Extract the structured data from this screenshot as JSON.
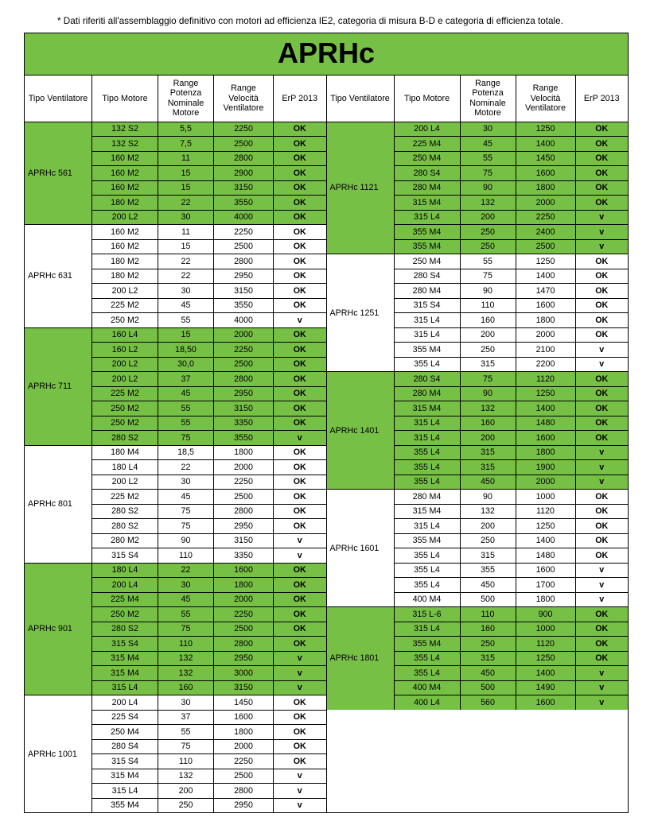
{
  "note": "* Dati riferiti all'assemblaggio definitivo con motori ad efficienza IE2, categoria di misura B-D e categoria di efficienza totale.",
  "title": "APRHc",
  "headers": {
    "tipo_vent": "Tipo Ventilatore",
    "tipo_motore": "Tipo Motore",
    "range_pot": "Range Potenza Nominale Motore",
    "range_vel": "Range Velocità Ventilatore",
    "erp": "ErP 2013"
  },
  "colors": {
    "green": "#77c046",
    "border": "#000000"
  },
  "left_groups": [
    {
      "label": "APRHc 561",
      "green_label": true,
      "rows": [
        {
          "m": "132 S2",
          "p": "5,5",
          "v": "2250",
          "e": "OK",
          "g": true
        },
        {
          "m": "132 S2",
          "p": "7,5",
          "v": "2500",
          "e": "OK",
          "g": true
        },
        {
          "m": "160 M2",
          "p": "11",
          "v": "2800",
          "e": "OK",
          "g": true
        },
        {
          "m": "160 M2",
          "p": "15",
          "v": "2900",
          "e": "OK",
          "g": true
        },
        {
          "m": "160 M2",
          "p": "15",
          "v": "3150",
          "e": "OK",
          "g": true
        },
        {
          "m": "180 M2",
          "p": "22",
          "v": "3550",
          "e": "OK",
          "g": true
        },
        {
          "m": "200 L2",
          "p": "30",
          "v": "4000",
          "e": "OK",
          "g": true
        }
      ]
    },
    {
      "label": "APRHc 631",
      "green_label": false,
      "rows": [
        {
          "m": "160 M2",
          "p": "11",
          "v": "2250",
          "e": "OK",
          "g": false
        },
        {
          "m": "160 M2",
          "p": "15",
          "v": "2500",
          "e": "OK",
          "g": false
        },
        {
          "m": "180 M2",
          "p": "22",
          "v": "2800",
          "e": "OK",
          "g": false
        },
        {
          "m": "180 M2",
          "p": "22",
          "v": "2950",
          "e": "OK",
          "g": false
        },
        {
          "m": "200 L2",
          "p": "30",
          "v": "3150",
          "e": "OK",
          "g": false
        },
        {
          "m": "225 M2",
          "p": "45",
          "v": "3550",
          "e": "OK",
          "g": false
        },
        {
          "m": "250 M2",
          "p": "55",
          "v": "4000",
          "e": "v",
          "g": false
        }
      ]
    },
    {
      "label": "APRHc 711",
      "green_label": true,
      "rows": [
        {
          "m": "160 L4",
          "p": "15",
          "v": "2000",
          "e": "OK",
          "g": true
        },
        {
          "m": "160 L2",
          "p": "18,50",
          "v": "2250",
          "e": "OK",
          "g": true
        },
        {
          "m": "200 L2",
          "p": "30,0",
          "v": "2500",
          "e": "OK",
          "g": true
        },
        {
          "m": "200 L2",
          "p": "37",
          "v": "2800",
          "e": "OK",
          "g": true
        },
        {
          "m": "225 M2",
          "p": "45",
          "v": "2950",
          "e": "OK",
          "g": true
        },
        {
          "m": "250 M2",
          "p": "55",
          "v": "3150",
          "e": "OK",
          "g": true
        },
        {
          "m": "250 M2",
          "p": "55",
          "v": "3350",
          "e": "OK",
          "g": true
        },
        {
          "m": "280 S2",
          "p": "75",
          "v": "3550",
          "e": "v",
          "g": true
        }
      ]
    },
    {
      "label": "APRHc 801",
      "green_label": false,
      "rows": [
        {
          "m": "180 M4",
          "p": "18,5",
          "v": "1800",
          "e": "OK",
          "g": false
        },
        {
          "m": "180 L4",
          "p": "22",
          "v": "2000",
          "e": "OK",
          "g": false
        },
        {
          "m": "200 L2",
          "p": "30",
          "v": "2250",
          "e": "OK",
          "g": false
        },
        {
          "m": "225 M2",
          "p": "45",
          "v": "2500",
          "e": "OK",
          "g": false
        },
        {
          "m": "280 S2",
          "p": "75",
          "v": "2800",
          "e": "OK",
          "g": false
        },
        {
          "m": "280 S2",
          "p": "75",
          "v": "2950",
          "e": "OK",
          "g": false
        },
        {
          "m": "280 M2",
          "p": "90",
          "v": "3150",
          "e": "v",
          "g": false
        },
        {
          "m": "315 S4",
          "p": "110",
          "v": "3350",
          "e": "v",
          "g": false
        }
      ]
    },
    {
      "label": "APRHc 901",
      "green_label": true,
      "rows": [
        {
          "m": "180 L4",
          "p": "22",
          "v": "1600",
          "e": "OK",
          "g": true
        },
        {
          "m": "200 L4",
          "p": "30",
          "v": "1800",
          "e": "OK",
          "g": true
        },
        {
          "m": "225 M4",
          "p": "45",
          "v": "2000",
          "e": "OK",
          "g": true
        },
        {
          "m": "250 M2",
          "p": "55",
          "v": "2250",
          "e": "OK",
          "g": true
        },
        {
          "m": "280 S2",
          "p": "75",
          "v": "2500",
          "e": "OK",
          "g": true
        },
        {
          "m": "315 S4",
          "p": "110",
          "v": "2800",
          "e": "OK",
          "g": true
        },
        {
          "m": "315 M4",
          "p": "132",
          "v": "2950",
          "e": "v",
          "g": true
        },
        {
          "m": "315 M4",
          "p": "132",
          "v": "3000",
          "e": "v",
          "g": true
        },
        {
          "m": "315 L4",
          "p": "160",
          "v": "3150",
          "e": "v",
          "g": true
        }
      ]
    },
    {
      "label": "APRHc 1001",
      "green_label": false,
      "rows": [
        {
          "m": "200 L4",
          "p": "30",
          "v": "1450",
          "e": "OK",
          "g": false
        },
        {
          "m": "225 S4",
          "p": "37",
          "v": "1600",
          "e": "OK",
          "g": false
        },
        {
          "m": "250 M4",
          "p": "55",
          "v": "1800",
          "e": "OK",
          "g": false
        },
        {
          "m": "280 S4",
          "p": "75",
          "v": "2000",
          "e": "OK",
          "g": false
        },
        {
          "m": "315 S4",
          "p": "110",
          "v": "2250",
          "e": "OK",
          "g": false
        },
        {
          "m": "315 M4",
          "p": "132",
          "v": "2500",
          "e": "v",
          "g": false
        },
        {
          "m": "315 L4",
          "p": "200",
          "v": "2800",
          "e": "v",
          "g": false
        },
        {
          "m": "355 M4",
          "p": "250",
          "v": "2950",
          "e": "v",
          "g": false
        }
      ]
    }
  ],
  "right_groups": [
    {
      "label": "APRHc 1121",
      "green_label": true,
      "rows": [
        {
          "m": "200 L4",
          "p": "30",
          "v": "1250",
          "e": "OK",
          "g": true
        },
        {
          "m": "225 M4",
          "p": "45",
          "v": "1400",
          "e": "OK",
          "g": true
        },
        {
          "m": "250 M4",
          "p": "55",
          "v": "1450",
          "e": "OK",
          "g": true
        },
        {
          "m": "280 S4",
          "p": "75",
          "v": "1600",
          "e": "OK",
          "g": true
        },
        {
          "m": "280 M4",
          "p": "90",
          "v": "1800",
          "e": "OK",
          "g": true
        },
        {
          "m": "315 M4",
          "p": "132",
          "v": "2000",
          "e": "OK",
          "g": true
        },
        {
          "m": "315 L4",
          "p": "200",
          "v": "2250",
          "e": "v",
          "g": true
        },
        {
          "m": "355 M4",
          "p": "250",
          "v": "2400",
          "e": "v",
          "g": true
        },
        {
          "m": "355 M4",
          "p": "250",
          "v": "2500",
          "e": "v",
          "g": true
        }
      ]
    },
    {
      "label": "APRHc 1251",
      "green_label": false,
      "rows": [
        {
          "m": "250 M4",
          "p": "55",
          "v": "1250",
          "e": "OK",
          "g": false
        },
        {
          "m": "280 S4",
          "p": "75",
          "v": "1400",
          "e": "OK",
          "g": false
        },
        {
          "m": "280 M4",
          "p": "90",
          "v": "1470",
          "e": "OK",
          "g": false
        },
        {
          "m": "315 S4",
          "p": "110",
          "v": "1600",
          "e": "OK",
          "g": false
        },
        {
          "m": "315 L4",
          "p": "160",
          "v": "1800",
          "e": "OK",
          "g": false
        },
        {
          "m": "315 L4",
          "p": "200",
          "v": "2000",
          "e": "OK",
          "g": false
        },
        {
          "m": "355 M4",
          "p": "250",
          "v": "2100",
          "e": "v",
          "g": false
        },
        {
          "m": "355 L4",
          "p": "315",
          "v": "2200",
          "e": "v",
          "g": false
        }
      ]
    },
    {
      "label": "APRHc 1401",
      "green_label": true,
      "rows": [
        {
          "m": "280 S4",
          "p": "75",
          "v": "1120",
          "e": "OK",
          "g": true
        },
        {
          "m": "280 M4",
          "p": "90",
          "v": "1250",
          "e": "OK",
          "g": true
        },
        {
          "m": "315 M4",
          "p": "132",
          "v": "1400",
          "e": "OK",
          "g": true
        },
        {
          "m": "315 L4",
          "p": "160",
          "v": "1480",
          "e": "OK",
          "g": true
        },
        {
          "m": "315 L4",
          "p": "200",
          "v": "1600",
          "e": "OK",
          "g": true
        },
        {
          "m": "355 L4",
          "p": "315",
          "v": "1800",
          "e": "v",
          "g": true
        },
        {
          "m": "355 L4",
          "p": "315",
          "v": "1900",
          "e": "v",
          "g": true
        },
        {
          "m": "355 L4",
          "p": "450",
          "v": "2000",
          "e": "v",
          "g": true
        }
      ]
    },
    {
      "label": "APRHc 1601",
      "green_label": false,
      "rows": [
        {
          "m": "280 M4",
          "p": "90",
          "v": "1000",
          "e": "OK",
          "g": false
        },
        {
          "m": "315 M4",
          "p": "132",
          "v": "1120",
          "e": "OK",
          "g": false
        },
        {
          "m": "315 L4",
          "p": "200",
          "v": "1250",
          "e": "OK",
          "g": false
        },
        {
          "m": "355 M4",
          "p": "250",
          "v": "1400",
          "e": "OK",
          "g": false
        },
        {
          "m": "355 L4",
          "p": "315",
          "v": "1480",
          "e": "OK",
          "g": false
        },
        {
          "m": "355 L4",
          "p": "355",
          "v": "1600",
          "e": "v",
          "g": false
        },
        {
          "m": "355 L4",
          "p": "450",
          "v": "1700",
          "e": "v",
          "g": false
        },
        {
          "m": "400 M4",
          "p": "500",
          "v": "1800",
          "e": "v",
          "g": false
        }
      ]
    },
    {
      "label": "APRHc 1801",
      "green_label": true,
      "rows": [
        {
          "m": "315 L-6",
          "p": "110",
          "v": "900",
          "e": "OK",
          "g": true
        },
        {
          "m": "315 L4",
          "p": "160",
          "v": "1000",
          "e": "OK",
          "g": true
        },
        {
          "m": "355 M4",
          "p": "250",
          "v": "1120",
          "e": "OK",
          "g": true
        },
        {
          "m": "355 L4",
          "p": "315",
          "v": "1250",
          "e": "OK",
          "g": true
        },
        {
          "m": "355 L4",
          "p": "450",
          "v": "1400",
          "e": "v",
          "g": true
        },
        {
          "m": "400 M4",
          "p": "500",
          "v": "1490",
          "e": "v",
          "g": true
        },
        {
          "m": "400 L4",
          "p": "560",
          "v": "1600",
          "e": "v",
          "g": true
        }
      ]
    }
  ]
}
